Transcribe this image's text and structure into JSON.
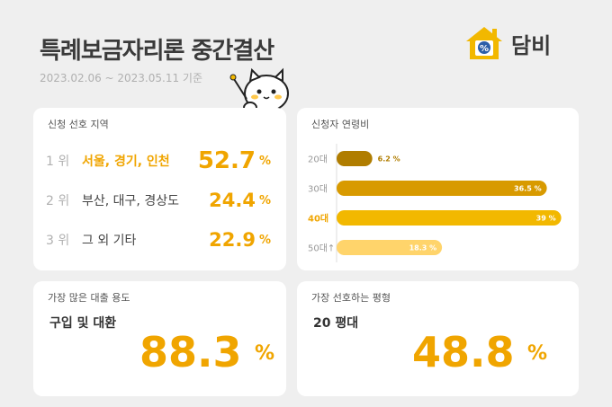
{
  "header": {
    "title": "특례보금자리론 중간결산",
    "period": "2023.02.06 ~ 2023.05.11 기준",
    "brand": "담비"
  },
  "region": {
    "title": "신청 선호 지역",
    "rows": [
      {
        "rank": "1 위",
        "label": "서울, 경기, 인천",
        "value": "52.7",
        "unit": "%"
      },
      {
        "rank": "2 위",
        "label": "부산, 대구, 경상도",
        "value": "24.4",
        "unit": "%"
      },
      {
        "rank": "3 위",
        "label": "그 외 기타",
        "value": "22.9",
        "unit": "%"
      }
    ]
  },
  "loan": {
    "title": "가장 많은 대출 용도",
    "label": "구입 및 대환",
    "value": "88.3",
    "unit": "%"
  },
  "area": {
    "title": "가장 선호하는 평형",
    "label": "20 평대",
    "value": "48.8",
    "unit": "%"
  },
  "colors": {
    "accent": "#f0a500",
    "bar_20": "#b07d00",
    "bar_30": "#d89a00",
    "bar_40": "#f2b800",
    "bar_50": "#ffd46b"
  },
  "chart_data": {
    "type": "bar",
    "orientation": "horizontal",
    "title": "신청자 연령비",
    "categories": [
      "20대",
      "30대",
      "40대",
      "50대↑"
    ],
    "values": [
      6.2,
      36.5,
      39,
      18.3
    ],
    "value_labels": [
      "6.2 %",
      "36.5 %",
      "39 %",
      "18.3 %"
    ],
    "highlight": "40대",
    "xlim": [
      0,
      40
    ],
    "grid": false
  }
}
